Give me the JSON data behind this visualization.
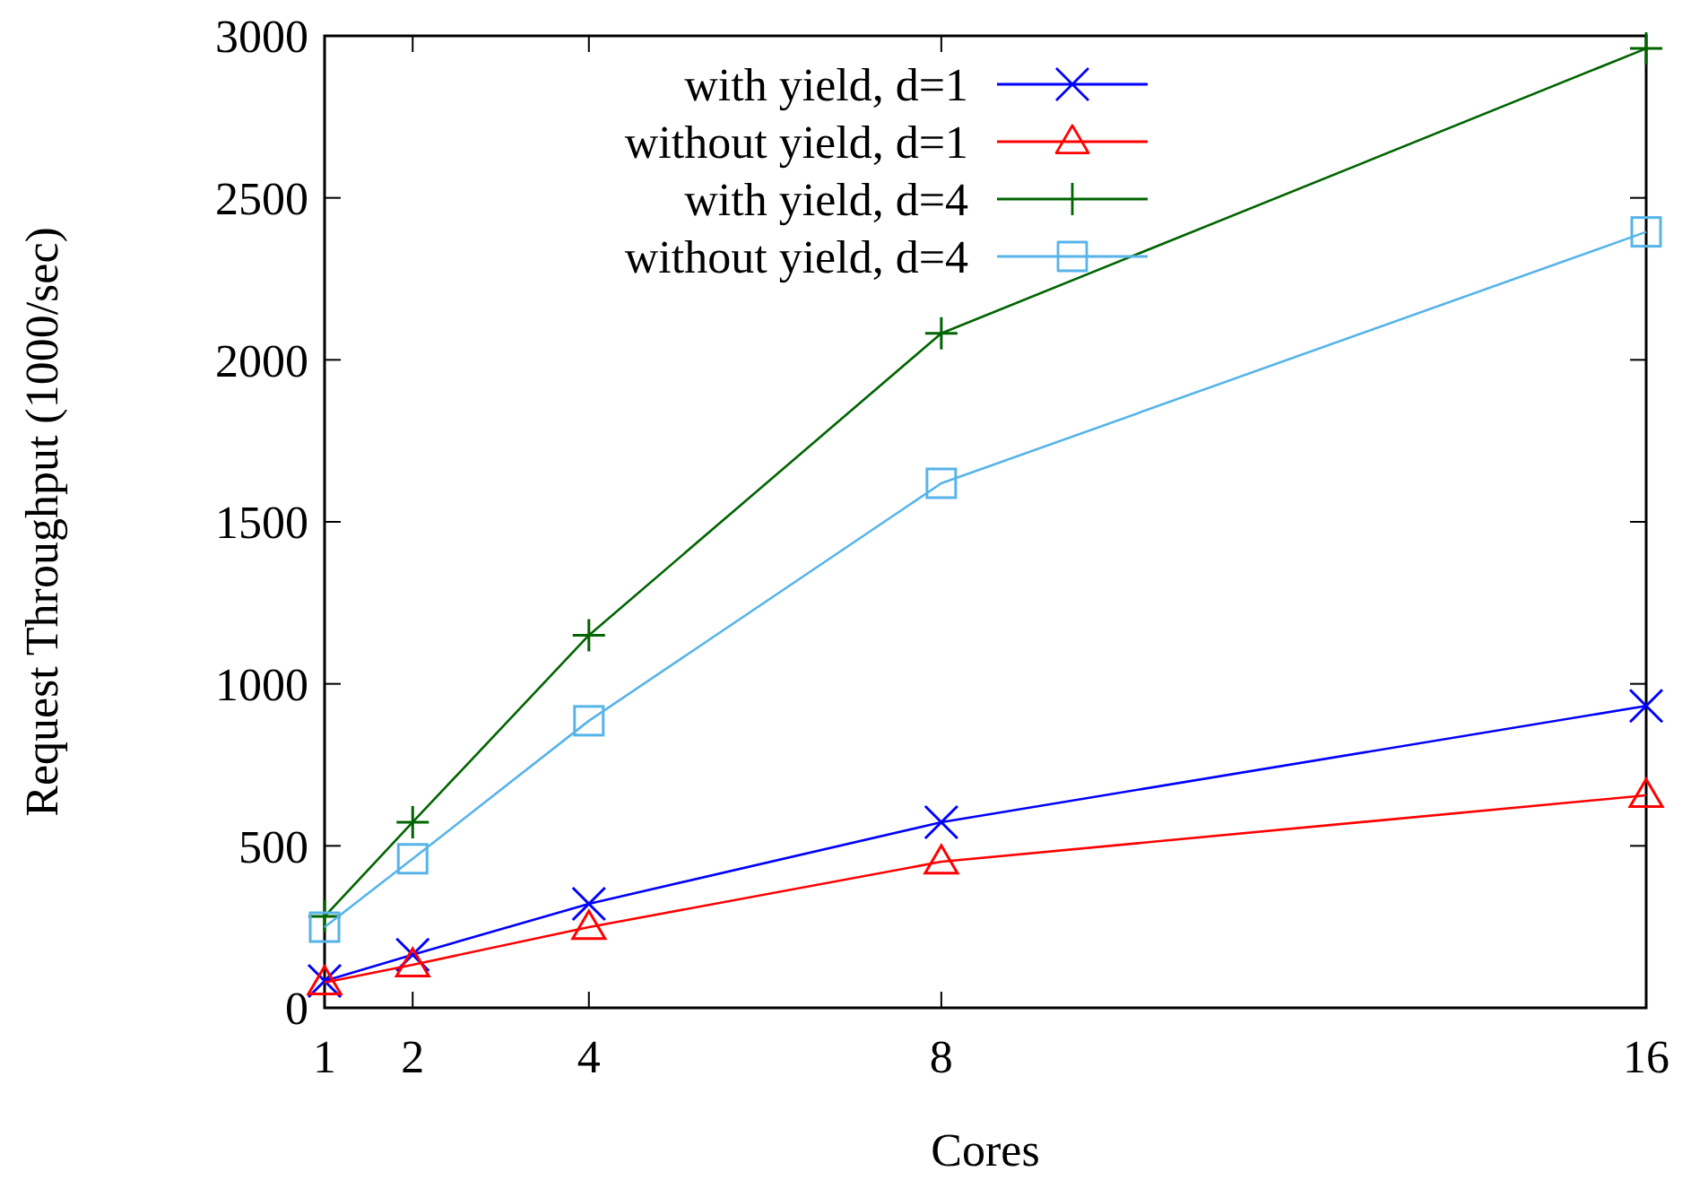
{
  "chart_data": {
    "type": "line",
    "xlabel": "Cores",
    "ylabel": "Request Throughput (1000/sec)",
    "x": [
      1,
      2,
      4,
      8,
      16
    ],
    "xlim": [
      1,
      16
    ],
    "xticks": [
      1,
      2,
      4,
      8,
      16
    ],
    "ylim": [
      0,
      3000
    ],
    "yticks": [
      0,
      500,
      1000,
      1500,
      2000,
      2500,
      3000
    ],
    "grid": false,
    "legend": "top",
    "line_style": "solid",
    "series": [
      {
        "name": "with yield, d=1",
        "color": "#0000ff",
        "marker": "x",
        "values": [
          83,
          164,
          321,
          573,
          932
        ]
      },
      {
        "name": "without yield, d=1",
        "color": "#ff0000",
        "marker": "triangle",
        "values": [
          78,
          133,
          249,
          451,
          656
        ]
      },
      {
        "name": "with yield, d=4",
        "color": "#006400",
        "marker": "cross",
        "values": [
          282,
          573,
          1150,
          2082,
          2961
        ]
      },
      {
        "name": "without yield, d=4",
        "color": "#56b4e9",
        "marker": "square",
        "values": [
          249,
          460,
          886,
          1619,
          2395
        ]
      }
    ]
  }
}
